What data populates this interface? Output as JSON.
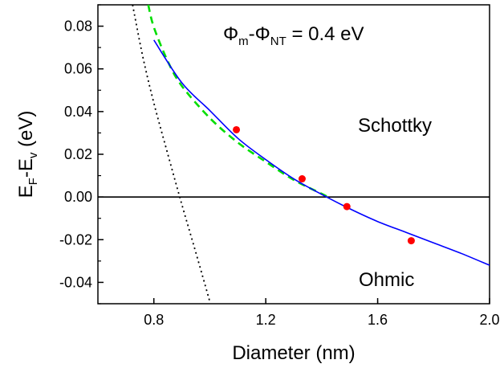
{
  "chart_data": {
    "type": "line",
    "xlabel": "Diameter  (nm)",
    "ylabel": {
      "main": "E",
      "sub1": "F",
      "dash": "-E",
      "sub2": "v",
      "unit": " (eV)"
    },
    "xlim": [
      0.6,
      2.0
    ],
    "ylim": [
      -0.05,
      0.09
    ],
    "xticks": [
      0.8,
      1.2,
      1.6,
      2.0
    ],
    "xtick_labels": [
      "0.8",
      "1.2",
      "1.6",
      "2.0"
    ],
    "yticks": [
      -0.04,
      -0.02,
      0.0,
      0.02,
      0.04,
      0.06,
      0.08
    ],
    "ytick_labels": [
      "-0.04",
      "-0.02",
      "0.00",
      "0.02",
      "0.04",
      "0.06",
      "0.08"
    ],
    "grid": false,
    "annotations": {
      "formula": {
        "phi": "Φ",
        "sub_m": "m",
        "dash": "-Φ",
        "sub_nt": "NT",
        "value": " = 0.4 eV"
      },
      "schottky": "Schottky",
      "ohmic": "Ohmic"
    },
    "series": [
      {
        "style": "points",
        "color": "#ff0000",
        "x": [
          1.095,
          1.33,
          1.49,
          1.72
        ],
        "y": [
          0.0315,
          0.0085,
          -0.0045,
          -0.0205
        ]
      },
      {
        "style": "solid",
        "color": "#0000ff",
        "x": [
          0.8,
          0.9,
          1.0,
          1.1,
          1.2,
          1.3,
          1.4,
          1.5,
          1.6,
          1.7,
          1.8,
          1.9,
          2.0
        ],
        "y": [
          0.0735,
          0.0535,
          0.0405,
          0.0275,
          0.0175,
          0.0085,
          0.0012,
          -0.0055,
          -0.0115,
          -0.0165,
          -0.0215,
          -0.0265,
          -0.032
        ]
      },
      {
        "style": "dashed",
        "color": "#00dd00",
        "x": [
          0.78,
          0.8,
          0.85,
          0.9,
          1.0,
          1.1,
          1.2,
          1.3,
          1.4,
          1.42
        ],
        "y": [
          0.09,
          0.0795,
          0.0635,
          0.052,
          0.037,
          0.0255,
          0.0165,
          0.008,
          0.0015,
          0.0002
        ]
      },
      {
        "style": "dotted",
        "color": "#000000",
        "x": [
          0.724,
          0.76,
          0.8,
          0.85,
          0.9,
          0.95,
          1.0
        ],
        "y": [
          0.09,
          0.066,
          0.044,
          0.02,
          -0.0035,
          -0.026,
          -0.049
        ]
      },
      {
        "style": "zero-line",
        "color": "#000000",
        "x": [
          0.6,
          2.0
        ],
        "y": [
          0.0,
          0.0
        ]
      }
    ]
  }
}
